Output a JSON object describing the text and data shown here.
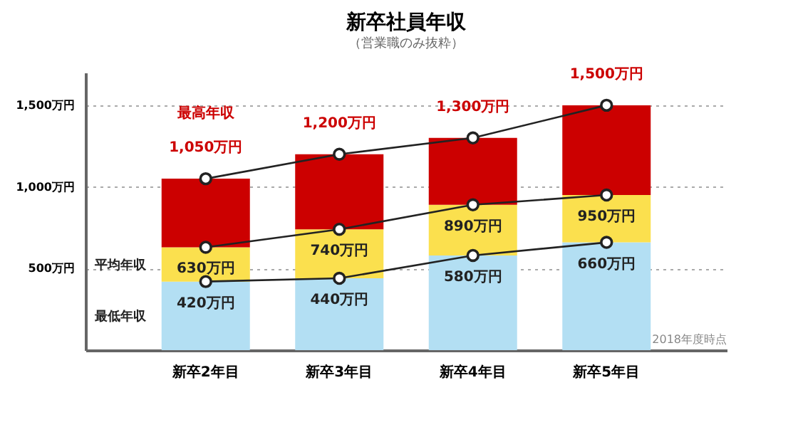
{
  "chart_data": {
    "type": "bar",
    "title": "新卒社員年収",
    "subtitle": "（営業職のみ抜粋）",
    "categories": [
      "新卒2年目",
      "新卒3年目",
      "新卒4年目",
      "新卒5年目"
    ],
    "stacked": true,
    "series": [
      {
        "name": "最低年収",
        "color": "#b3dff3",
        "values": [
          420,
          440,
          580,
          660
        ]
      },
      {
        "name": "平均年収",
        "color": "#fbe04e",
        "values": [
          210,
          300,
          310,
          290
        ]
      },
      {
        "name": "最高年収",
        "color": "#cc0000",
        "values": [
          420,
          460,
          410,
          550
        ]
      },
      {
        "type": "line",
        "color": "#222222",
        "values": [
          420,
          440,
          580,
          660
        ],
        "value_labels": [
          "420万円",
          "440万円",
          "580万円",
          "660万円"
        ]
      },
      {
        "type": "line",
        "color": "#222222",
        "values": [
          630,
          740,
          890,
          950
        ],
        "value_labels": [
          "630万円",
          "740万円",
          "890万円",
          "950万円"
        ]
      },
      {
        "type": "line",
        "color": "#222222",
        "values": [
          1050,
          1200,
          1300,
          1500
        ],
        "value_labels": [
          "1,050万円",
          "1,200万円",
          "1,300万円",
          "1,500万円"
        ]
      }
    ],
    "ylim": [
      0,
      1700
    ],
    "yticks": [
      {
        "value": 500,
        "label": "500万円"
      },
      {
        "value": 1000,
        "label": "1,000万円"
      },
      {
        "value": 1500,
        "label": "1,500万円"
      }
    ],
    "grid": "y",
    "marker": "circle",
    "line_style": "solid",
    "annotations": [
      "2018年度時点"
    ]
  }
}
